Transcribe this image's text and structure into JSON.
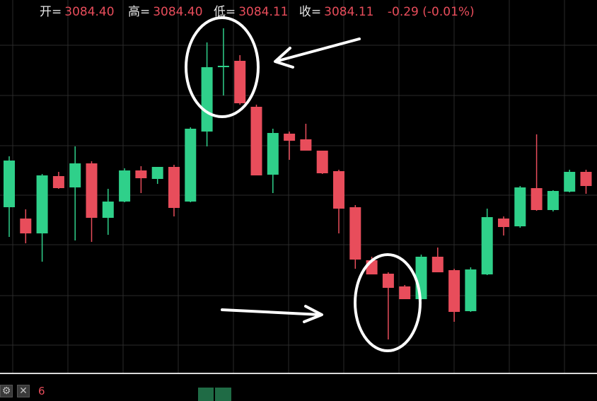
{
  "info": {
    "open_label": "开=",
    "open_value": "3084.40",
    "high_label": "高=",
    "high_value": "3084.40",
    "low_label": "低=",
    "low_value": "3084.11",
    "close_label": "收=",
    "close_value": "3084.11",
    "change": "-0.29 (-0.01%)"
  },
  "bottom_bar": {
    "settings_icon": "gear-icon",
    "close_icon": "close-icon",
    "indicator_value": "6"
  },
  "colors": {
    "up": "#2fd08a",
    "down": "#e84d5b",
    "grid": "#2a2a2a",
    "annotation": "#ffffff"
  },
  "chart_data": {
    "type": "candlestick",
    "series": [
      {
        "o": 293,
        "h": 221,
        "l": 335,
        "c": 227
      },
      {
        "o": 309,
        "h": 296,
        "l": 344,
        "c": 330
      },
      {
        "o": 330,
        "h": 246,
        "l": 370,
        "c": 248
      },
      {
        "o": 249,
        "h": 243,
        "l": 267,
        "c": 266
      },
      {
        "o": 265,
        "h": 207,
        "l": 340,
        "c": 231
      },
      {
        "o": 231,
        "h": 228,
        "l": 342,
        "c": 308
      },
      {
        "o": 308,
        "h": 267,
        "l": 332,
        "c": 285
      },
      {
        "o": 285,
        "h": 238,
        "l": 286,
        "c": 241
      },
      {
        "o": 241,
        "h": 235,
        "l": 273,
        "c": 252
      },
      {
        "o": 253,
        "h": 236,
        "l": 260,
        "c": 236
      },
      {
        "o": 236,
        "h": 233,
        "l": 306,
        "c": 294
      },
      {
        "o": 285,
        "h": 180,
        "l": 286,
        "c": 182
      },
      {
        "o": 186,
        "h": 60,
        "l": 207,
        "c": 95
      },
      {
        "o": 95,
        "h": 40,
        "l": 135,
        "c": 93
      },
      {
        "o": 86,
        "h": 78,
        "l": 148,
        "c": 146
      },
      {
        "o": 151,
        "h": 148,
        "l": 248,
        "c": 248
      },
      {
        "o": 247,
        "h": 182,
        "l": 273,
        "c": 188
      },
      {
        "o": 189,
        "h": 186,
        "l": 226,
        "c": 199
      },
      {
        "o": 197,
        "h": 175,
        "l": 213,
        "c": 213
      },
      {
        "o": 213,
        "h": 213,
        "l": 246,
        "c": 245
      },
      {
        "o": 242,
        "h": 240,
        "l": 330,
        "c": 295
      },
      {
        "o": 293,
        "h": 290,
        "l": 380,
        "c": 367
      },
      {
        "o": 368,
        "h": 363,
        "l": 388,
        "c": 388
      },
      {
        "o": 387,
        "h": 385,
        "l": 480,
        "c": 407
      },
      {
        "o": 405,
        "h": 403,
        "l": 423,
        "c": 423
      },
      {
        "o": 423,
        "h": 360,
        "l": 424,
        "c": 363
      },
      {
        "o": 363,
        "h": 350,
        "l": 385,
        "c": 385
      },
      {
        "o": 382,
        "h": 380,
        "l": 455,
        "c": 441
      },
      {
        "o": 440,
        "h": 378,
        "l": 441,
        "c": 381
      },
      {
        "o": 388,
        "h": 295,
        "l": 389,
        "c": 307
      },
      {
        "o": 309,
        "h": 306,
        "l": 333,
        "c": 321
      },
      {
        "o": 320,
        "h": 263,
        "l": 322,
        "c": 265
      },
      {
        "o": 266,
        "h": 190,
        "l": 298,
        "c": 297
      },
      {
        "o": 297,
        "h": 269,
        "l": 299,
        "c": 270
      },
      {
        "o": 271,
        "h": 240,
        "l": 272,
        "c": 243
      },
      {
        "o": 243,
        "h": 240,
        "l": 274,
        "c": 263
      }
    ]
  }
}
